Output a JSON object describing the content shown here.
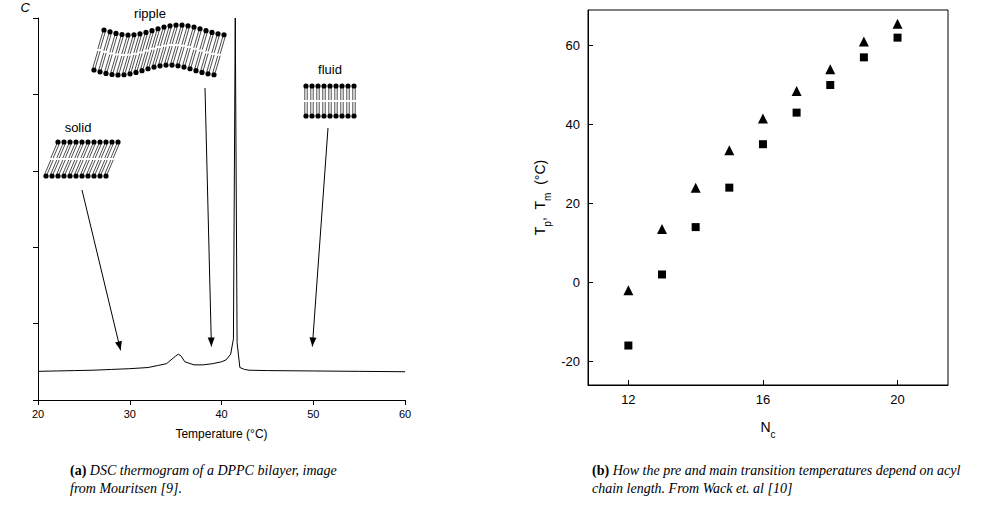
{
  "chart_data": [
    {
      "type": "line",
      "ylabel": "C",
      "xlabel": "Temperature (°C)",
      "x": [
        20,
        22,
        24,
        26,
        28,
        30,
        32,
        33,
        34,
        34.5,
        35,
        35.3,
        35.6,
        36,
        37,
        38,
        39,
        40,
        40.5,
        41,
        41.3,
        41.5,
        41.7,
        42,
        42.5,
        43,
        45,
        50,
        55,
        60
      ],
      "values": [
        0.75,
        0.76,
        0.77,
        0.78,
        0.8,
        0.82,
        0.85,
        0.9,
        0.95,
        1.05,
        1.15,
        1.2,
        1.15,
        1.0,
        0.92,
        0.92,
        0.95,
        1.0,
        1.05,
        1.2,
        1.6,
        10,
        1.5,
        0.85,
        0.8,
        0.78,
        0.77,
        0.76,
        0.75,
        0.74
      ],
      "color": "#000000",
      "xlim": [
        20,
        60
      ],
      "xticks": [
        20,
        30,
        40,
        50,
        60
      ],
      "ylim": [
        0,
        10
      ],
      "yticks": [
        0,
        2,
        4,
        6,
        8,
        10
      ],
      "tick_labels": "x",
      "grid": false,
      "annotations": [
        {
          "text": "solid",
          "x": 29,
          "y": 1.3
        },
        {
          "text": "ripple",
          "x": 38.9,
          "y": 1.4
        },
        {
          "text": "fluid",
          "x": 49.9,
          "y": 1.4
        }
      ],
      "caption": {
        "label": "(a)",
        "text": "DSC thermogram of a DPPC bilayer, image from Mouritsen [9]."
      }
    },
    {
      "type": "scatter",
      "xlabel": [
        {
          "text": "N"
        },
        {
          "text": "c",
          "sub": true
        }
      ],
      "ylabel": [
        {
          "text": "T"
        },
        {
          "text": "p",
          "sub": true
        },
        {
          "text": ",  T"
        },
        {
          "text": "m",
          "sub": true
        },
        {
          "text": "  (°C)"
        }
      ],
      "x": [
        12,
        13,
        14,
        15,
        16,
        17,
        18,
        19,
        20
      ],
      "series": [
        {
          "marker": "triangle",
          "color": "#000000",
          "values": [
            -2,
            13.5,
            24,
            33.5,
            41.5,
            48.5,
            54,
            61,
            65.5
          ]
        },
        {
          "marker": "square",
          "color": "#000000",
          "values": [
            -16,
            2,
            14,
            24,
            35,
            43,
            50,
            57,
            62
          ]
        }
      ],
      "xlim": [
        10.8,
        21.5
      ],
      "xticks": [
        12,
        16,
        20
      ],
      "ylim": [
        -26,
        69
      ],
      "yticks": [
        -20,
        0,
        20,
        40,
        60
      ],
      "grid": false,
      "caption": {
        "label": "(b)",
        "text": "How the pre and main transition temperatures depend on acyl chain length. From Wack et. al [10]"
      }
    }
  ]
}
